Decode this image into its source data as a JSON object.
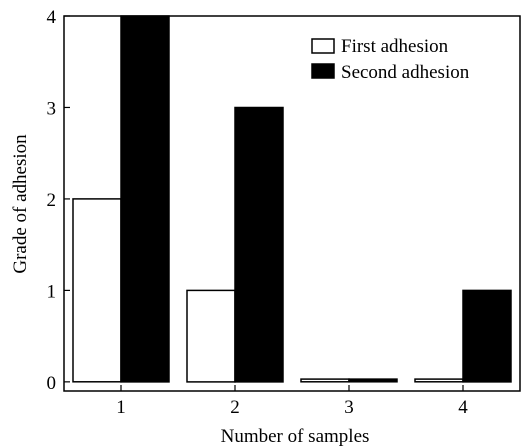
{
  "chart_data": {
    "type": "bar",
    "categories": [
      "1",
      "2",
      "3",
      "4"
    ],
    "series": [
      {
        "name": "First adhesion",
        "values": [
          2,
          1,
          0.03,
          0.03
        ],
        "fill": "#ffffff"
      },
      {
        "name": "Second adhesion",
        "values": [
          4,
          3,
          0.03,
          1
        ],
        "fill": "#000000"
      }
    ],
    "xlabel": "Number of samples",
    "ylabel": "Grade of adhesion",
    "ylim": [
      -0.1,
      4
    ],
    "yticks": [
      0,
      1,
      2,
      3,
      4
    ],
    "grid": false,
    "legend_position": "top-right"
  }
}
